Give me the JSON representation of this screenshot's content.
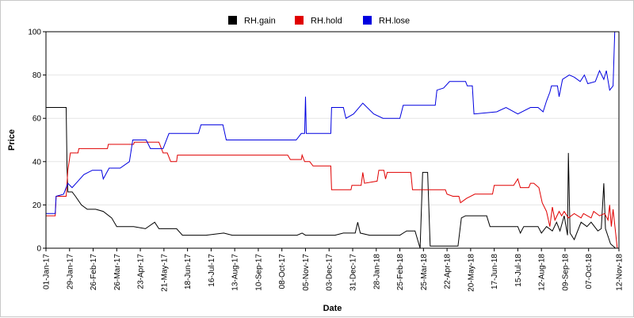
{
  "chart_data": {
    "type": "line",
    "xlabel": "Date",
    "ylabel": "Price",
    "ylim": [
      0,
      100
    ],
    "xlim": [
      "2017-01-01",
      "2018-11-12"
    ],
    "y_ticks": [
      0,
      20,
      40,
      60,
      80,
      100
    ],
    "x_tick_labels": [
      "01-Jan-17",
      "29-Jan-17",
      "26-Feb-17",
      "26-Mar-17",
      "23-Apr-17",
      "21-May-17",
      "18-Jun-17",
      "16-Jul-17",
      "13-Aug-17",
      "10-Sep-17",
      "08-Oct-17",
      "05-Nov-17",
      "03-Dec-17",
      "31-Dec-17",
      "28-Jan-18",
      "25-Feb-18",
      "25-Mar-18",
      "22-Apr-18",
      "20-May-18",
      "17-Jun-18",
      "15-Jul-18",
      "12-Aug-18",
      "09-Sep-18",
      "07-Oct-18",
      "12-Nov-18"
    ],
    "grid": "horizontal",
    "legend_position": "top-center",
    "series": [
      {
        "name": "RH.gain",
        "color": "#000000",
        "points": [
          [
            "2017-01-01",
            65
          ],
          [
            "2017-01-25",
            65
          ],
          [
            "2017-01-26",
            37
          ],
          [
            "2017-01-27",
            26
          ],
          [
            "2017-02-01",
            26
          ],
          [
            "2017-02-05",
            24
          ],
          [
            "2017-02-12",
            20
          ],
          [
            "2017-02-19",
            18
          ],
          [
            "2017-03-01",
            18
          ],
          [
            "2017-03-10",
            17
          ],
          [
            "2017-03-20",
            14
          ],
          [
            "2017-03-26",
            10
          ],
          [
            "2017-04-15",
            10
          ],
          [
            "2017-04-29",
            9
          ],
          [
            "2017-05-10",
            12
          ],
          [
            "2017-05-15",
            9
          ],
          [
            "2017-06-05",
            9
          ],
          [
            "2017-06-12",
            6
          ],
          [
            "2017-07-10",
            6
          ],
          [
            "2017-07-31",
            7
          ],
          [
            "2017-08-10",
            6
          ],
          [
            "2017-10-26",
            6
          ],
          [
            "2017-11-01",
            7
          ],
          [
            "2017-11-05",
            6
          ],
          [
            "2017-12-10",
            6
          ],
          [
            "2017-12-20",
            7
          ],
          [
            "2018-01-03",
            7
          ],
          [
            "2018-01-06",
            12
          ],
          [
            "2018-01-09",
            7
          ],
          [
            "2018-01-20",
            6
          ],
          [
            "2018-02-25",
            6
          ],
          [
            "2018-03-05",
            8
          ],
          [
            "2018-03-15",
            8
          ],
          [
            "2018-03-21",
            0
          ],
          [
            "2018-03-24",
            35
          ],
          [
            "2018-03-30",
            35
          ],
          [
            "2018-04-02",
            1
          ],
          [
            "2018-05-05",
            1
          ],
          [
            "2018-05-09",
            14
          ],
          [
            "2018-05-14",
            15
          ],
          [
            "2018-06-08",
            15
          ],
          [
            "2018-06-12",
            10
          ],
          [
            "2018-07-15",
            10
          ],
          [
            "2018-07-18",
            7
          ],
          [
            "2018-07-22",
            10
          ],
          [
            "2018-08-08",
            10
          ],
          [
            "2018-08-12",
            7
          ],
          [
            "2018-08-18",
            10
          ],
          [
            "2018-08-25",
            8
          ],
          [
            "2018-08-30",
            12
          ],
          [
            "2018-09-03",
            8
          ],
          [
            "2018-09-08",
            15
          ],
          [
            "2018-09-12",
            6
          ],
          [
            "2018-09-13",
            44
          ],
          [
            "2018-09-15",
            7
          ],
          [
            "2018-09-20",
            4
          ],
          [
            "2018-09-28",
            12
          ],
          [
            "2018-10-05",
            10
          ],
          [
            "2018-10-10",
            12
          ],
          [
            "2018-10-18",
            8
          ],
          [
            "2018-10-22",
            9
          ],
          [
            "2018-10-25",
            30
          ],
          [
            "2018-10-27",
            9
          ],
          [
            "2018-11-02",
            2
          ],
          [
            "2018-11-08",
            0
          ],
          [
            "2018-11-12",
            0
          ]
        ]
      },
      {
        "name": "RH.hold",
        "color": "#e00000",
        "points": [
          [
            "2017-01-01",
            15
          ],
          [
            "2017-01-12",
            15
          ],
          [
            "2017-01-13",
            24
          ],
          [
            "2017-01-25",
            24
          ],
          [
            "2017-01-27",
            36
          ],
          [
            "2017-01-30",
            44
          ],
          [
            "2017-02-08",
            44
          ],
          [
            "2017-02-09",
            46
          ],
          [
            "2017-03-15",
            46
          ],
          [
            "2017-03-16",
            48
          ],
          [
            "2017-04-15",
            48
          ],
          [
            "2017-04-16",
            49
          ],
          [
            "2017-05-15",
            49
          ],
          [
            "2017-05-20",
            44
          ],
          [
            "2017-05-25",
            44
          ],
          [
            "2017-05-29",
            40
          ],
          [
            "2017-06-05",
            40
          ],
          [
            "2017-06-06",
            43
          ],
          [
            "2017-09-20",
            43
          ],
          [
            "2017-10-15",
            43
          ],
          [
            "2017-10-18",
            41
          ],
          [
            "2017-10-31",
            41
          ],
          [
            "2017-11-01",
            43
          ],
          [
            "2017-11-04",
            40
          ],
          [
            "2017-11-10",
            40
          ],
          [
            "2017-11-14",
            38
          ],
          [
            "2017-12-05",
            38
          ],
          [
            "2017-12-06",
            27
          ],
          [
            "2017-12-29",
            27
          ],
          [
            "2017-12-30",
            29
          ],
          [
            "2018-01-10",
            29
          ],
          [
            "2018-01-12",
            35
          ],
          [
            "2018-01-14",
            30
          ],
          [
            "2018-01-29",
            31
          ],
          [
            "2018-01-31",
            36
          ],
          [
            "2018-02-06",
            36
          ],
          [
            "2018-02-08",
            32
          ],
          [
            "2018-02-10",
            35
          ],
          [
            "2018-03-10",
            35
          ],
          [
            "2018-03-12",
            27
          ],
          [
            "2018-04-20",
            27
          ],
          [
            "2018-04-22",
            25
          ],
          [
            "2018-04-29",
            24
          ],
          [
            "2018-05-06",
            24
          ],
          [
            "2018-05-08",
            21
          ],
          [
            "2018-05-15",
            23
          ],
          [
            "2018-05-25",
            25
          ],
          [
            "2018-06-15",
            25
          ],
          [
            "2018-06-17",
            29
          ],
          [
            "2018-07-10",
            29
          ],
          [
            "2018-07-15",
            32
          ],
          [
            "2018-07-18",
            28
          ],
          [
            "2018-07-28",
            28
          ],
          [
            "2018-07-30",
            30
          ],
          [
            "2018-08-03",
            30
          ],
          [
            "2018-08-09",
            28
          ],
          [
            "2018-08-13",
            21
          ],
          [
            "2018-08-18",
            17
          ],
          [
            "2018-08-22",
            10
          ],
          [
            "2018-08-25",
            19
          ],
          [
            "2018-08-28",
            13
          ],
          [
            "2018-09-02",
            17
          ],
          [
            "2018-09-05",
            15
          ],
          [
            "2018-09-08",
            17
          ],
          [
            "2018-09-13",
            14
          ],
          [
            "2018-09-20",
            16
          ],
          [
            "2018-09-28",
            14
          ],
          [
            "2018-10-01",
            16
          ],
          [
            "2018-10-10",
            14
          ],
          [
            "2018-10-13",
            17
          ],
          [
            "2018-10-20",
            15
          ],
          [
            "2018-10-26",
            16
          ],
          [
            "2018-10-30",
            13
          ],
          [
            "2018-11-01",
            20
          ],
          [
            "2018-11-03",
            10
          ],
          [
            "2018-11-05",
            18
          ],
          [
            "2018-11-10",
            0
          ],
          [
            "2018-11-12",
            0
          ]
        ]
      },
      {
        "name": "RH.lose",
        "color": "#0000e0",
        "points": [
          [
            "2017-01-01",
            16
          ],
          [
            "2017-01-12",
            16
          ],
          [
            "2017-01-13",
            24
          ],
          [
            "2017-01-22",
            25
          ],
          [
            "2017-01-27",
            30
          ],
          [
            "2017-02-01",
            28
          ],
          [
            "2017-02-08",
            31
          ],
          [
            "2017-02-15",
            34
          ],
          [
            "2017-02-25",
            36
          ],
          [
            "2017-03-08",
            36
          ],
          [
            "2017-03-10",
            32
          ],
          [
            "2017-03-17",
            37
          ],
          [
            "2017-03-30",
            37
          ],
          [
            "2017-04-10",
            40
          ],
          [
            "2017-04-14",
            50
          ],
          [
            "2017-04-30",
            50
          ],
          [
            "2017-05-05",
            46
          ],
          [
            "2017-05-20",
            46
          ],
          [
            "2017-05-27",
            53
          ],
          [
            "2017-07-01",
            53
          ],
          [
            "2017-07-04",
            57
          ],
          [
            "2017-07-30",
            57
          ],
          [
            "2017-08-03",
            50
          ],
          [
            "2017-10-25",
            50
          ],
          [
            "2017-10-31",
            53
          ],
          [
            "2017-11-04",
            53
          ],
          [
            "2017-11-05",
            70
          ],
          [
            "2017-11-06",
            53
          ],
          [
            "2017-12-05",
            53
          ],
          [
            "2017-12-06",
            65
          ],
          [
            "2017-12-20",
            65
          ],
          [
            "2017-12-23",
            60
          ],
          [
            "2018-01-01",
            62
          ],
          [
            "2018-01-12",
            67
          ],
          [
            "2018-01-25",
            62
          ],
          [
            "2018-02-05",
            60
          ],
          [
            "2018-02-25",
            60
          ],
          [
            "2018-03-01",
            66
          ],
          [
            "2018-04-08",
            66
          ],
          [
            "2018-04-10",
            73
          ],
          [
            "2018-04-18",
            74
          ],
          [
            "2018-04-25",
            77
          ],
          [
            "2018-05-14",
            77
          ],
          [
            "2018-05-16",
            75
          ],
          [
            "2018-05-22",
            75
          ],
          [
            "2018-05-24",
            62
          ],
          [
            "2018-06-20",
            63
          ],
          [
            "2018-07-01",
            65
          ],
          [
            "2018-07-15",
            62
          ],
          [
            "2018-07-30",
            65
          ],
          [
            "2018-08-08",
            65
          ],
          [
            "2018-08-14",
            63
          ],
          [
            "2018-08-18",
            68
          ],
          [
            "2018-08-22",
            72
          ],
          [
            "2018-08-24",
            75
          ],
          [
            "2018-08-31",
            75
          ],
          [
            "2018-09-02",
            70
          ],
          [
            "2018-09-06",
            78
          ],
          [
            "2018-09-14",
            80
          ],
          [
            "2018-09-20",
            79
          ],
          [
            "2018-09-27",
            77
          ],
          [
            "2018-10-02",
            80
          ],
          [
            "2018-10-06",
            76
          ],
          [
            "2018-10-15",
            77
          ],
          [
            "2018-10-20",
            82
          ],
          [
            "2018-10-25",
            78
          ],
          [
            "2018-10-28",
            82
          ],
          [
            "2018-11-01",
            73
          ],
          [
            "2018-11-05",
            75
          ],
          [
            "2018-11-07",
            100
          ],
          [
            "2018-11-12",
            100
          ]
        ]
      }
    ]
  }
}
